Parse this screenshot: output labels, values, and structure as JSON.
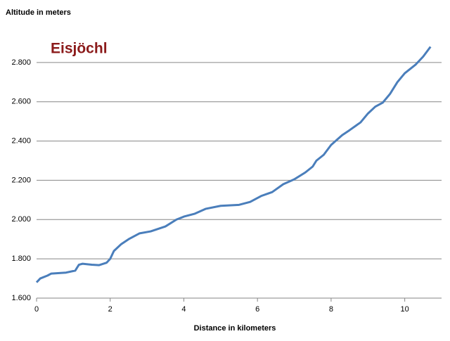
{
  "chart_data": {
    "type": "line",
    "title": "Eisjöchl",
    "x_label": "Distance in kilometers",
    "y_label": "Altitude in meters",
    "x": [
      0,
      0.1,
      0.3,
      0.4,
      0.8,
      1.05,
      1.15,
      1.25,
      1.5,
      1.7,
      1.9,
      2.0,
      2.1,
      2.3,
      2.5,
      2.8,
      3.1,
      3.5,
      3.8,
      4.0,
      4.3,
      4.6,
      5.0,
      5.5,
      5.8,
      6.1,
      6.4,
      6.7,
      7.0,
      7.3,
      7.5,
      7.6,
      7.8,
      8.0,
      8.3,
      8.5,
      8.8,
      9.0,
      9.2,
      9.4,
      9.6,
      9.8,
      10.0,
      10.3,
      10.5,
      10.7
    ],
    "series": [
      {
        "name": "Eisjöchl",
        "color": "#4a7ebb",
        "values": [
          1680,
          1700,
          1715,
          1725,
          1730,
          1740,
          1770,
          1775,
          1770,
          1768,
          1780,
          1800,
          1840,
          1875,
          1900,
          1930,
          1940,
          1965,
          2000,
          2015,
          2030,
          2055,
          2070,
          2075,
          2090,
          2120,
          2140,
          2180,
          2205,
          2240,
          2270,
          2300,
          2330,
          2380,
          2430,
          2455,
          2495,
          2540,
          2575,
          2595,
          2640,
          2700,
          2745,
          2790,
          2830,
          2880
        ]
      }
    ],
    "xlim": [
      0,
      11
    ],
    "xticks": [
      0,
      2,
      4,
      6,
      8,
      10
    ],
    "ylim": [
      1600,
      3000
    ],
    "yticks": [
      {
        "value": 1600,
        "label": "1.600"
      },
      {
        "value": 1800,
        "label": "1.800"
      },
      {
        "value": 2000,
        "label": "2.000"
      },
      {
        "value": 2200,
        "label": "2.200"
      },
      {
        "value": 2400,
        "label": "2.400"
      },
      {
        "value": 2600,
        "label": "2.600"
      },
      {
        "value": 2800,
        "label": "2.800"
      }
    ],
    "grid": true,
    "title_color": "#8b1a1a"
  }
}
